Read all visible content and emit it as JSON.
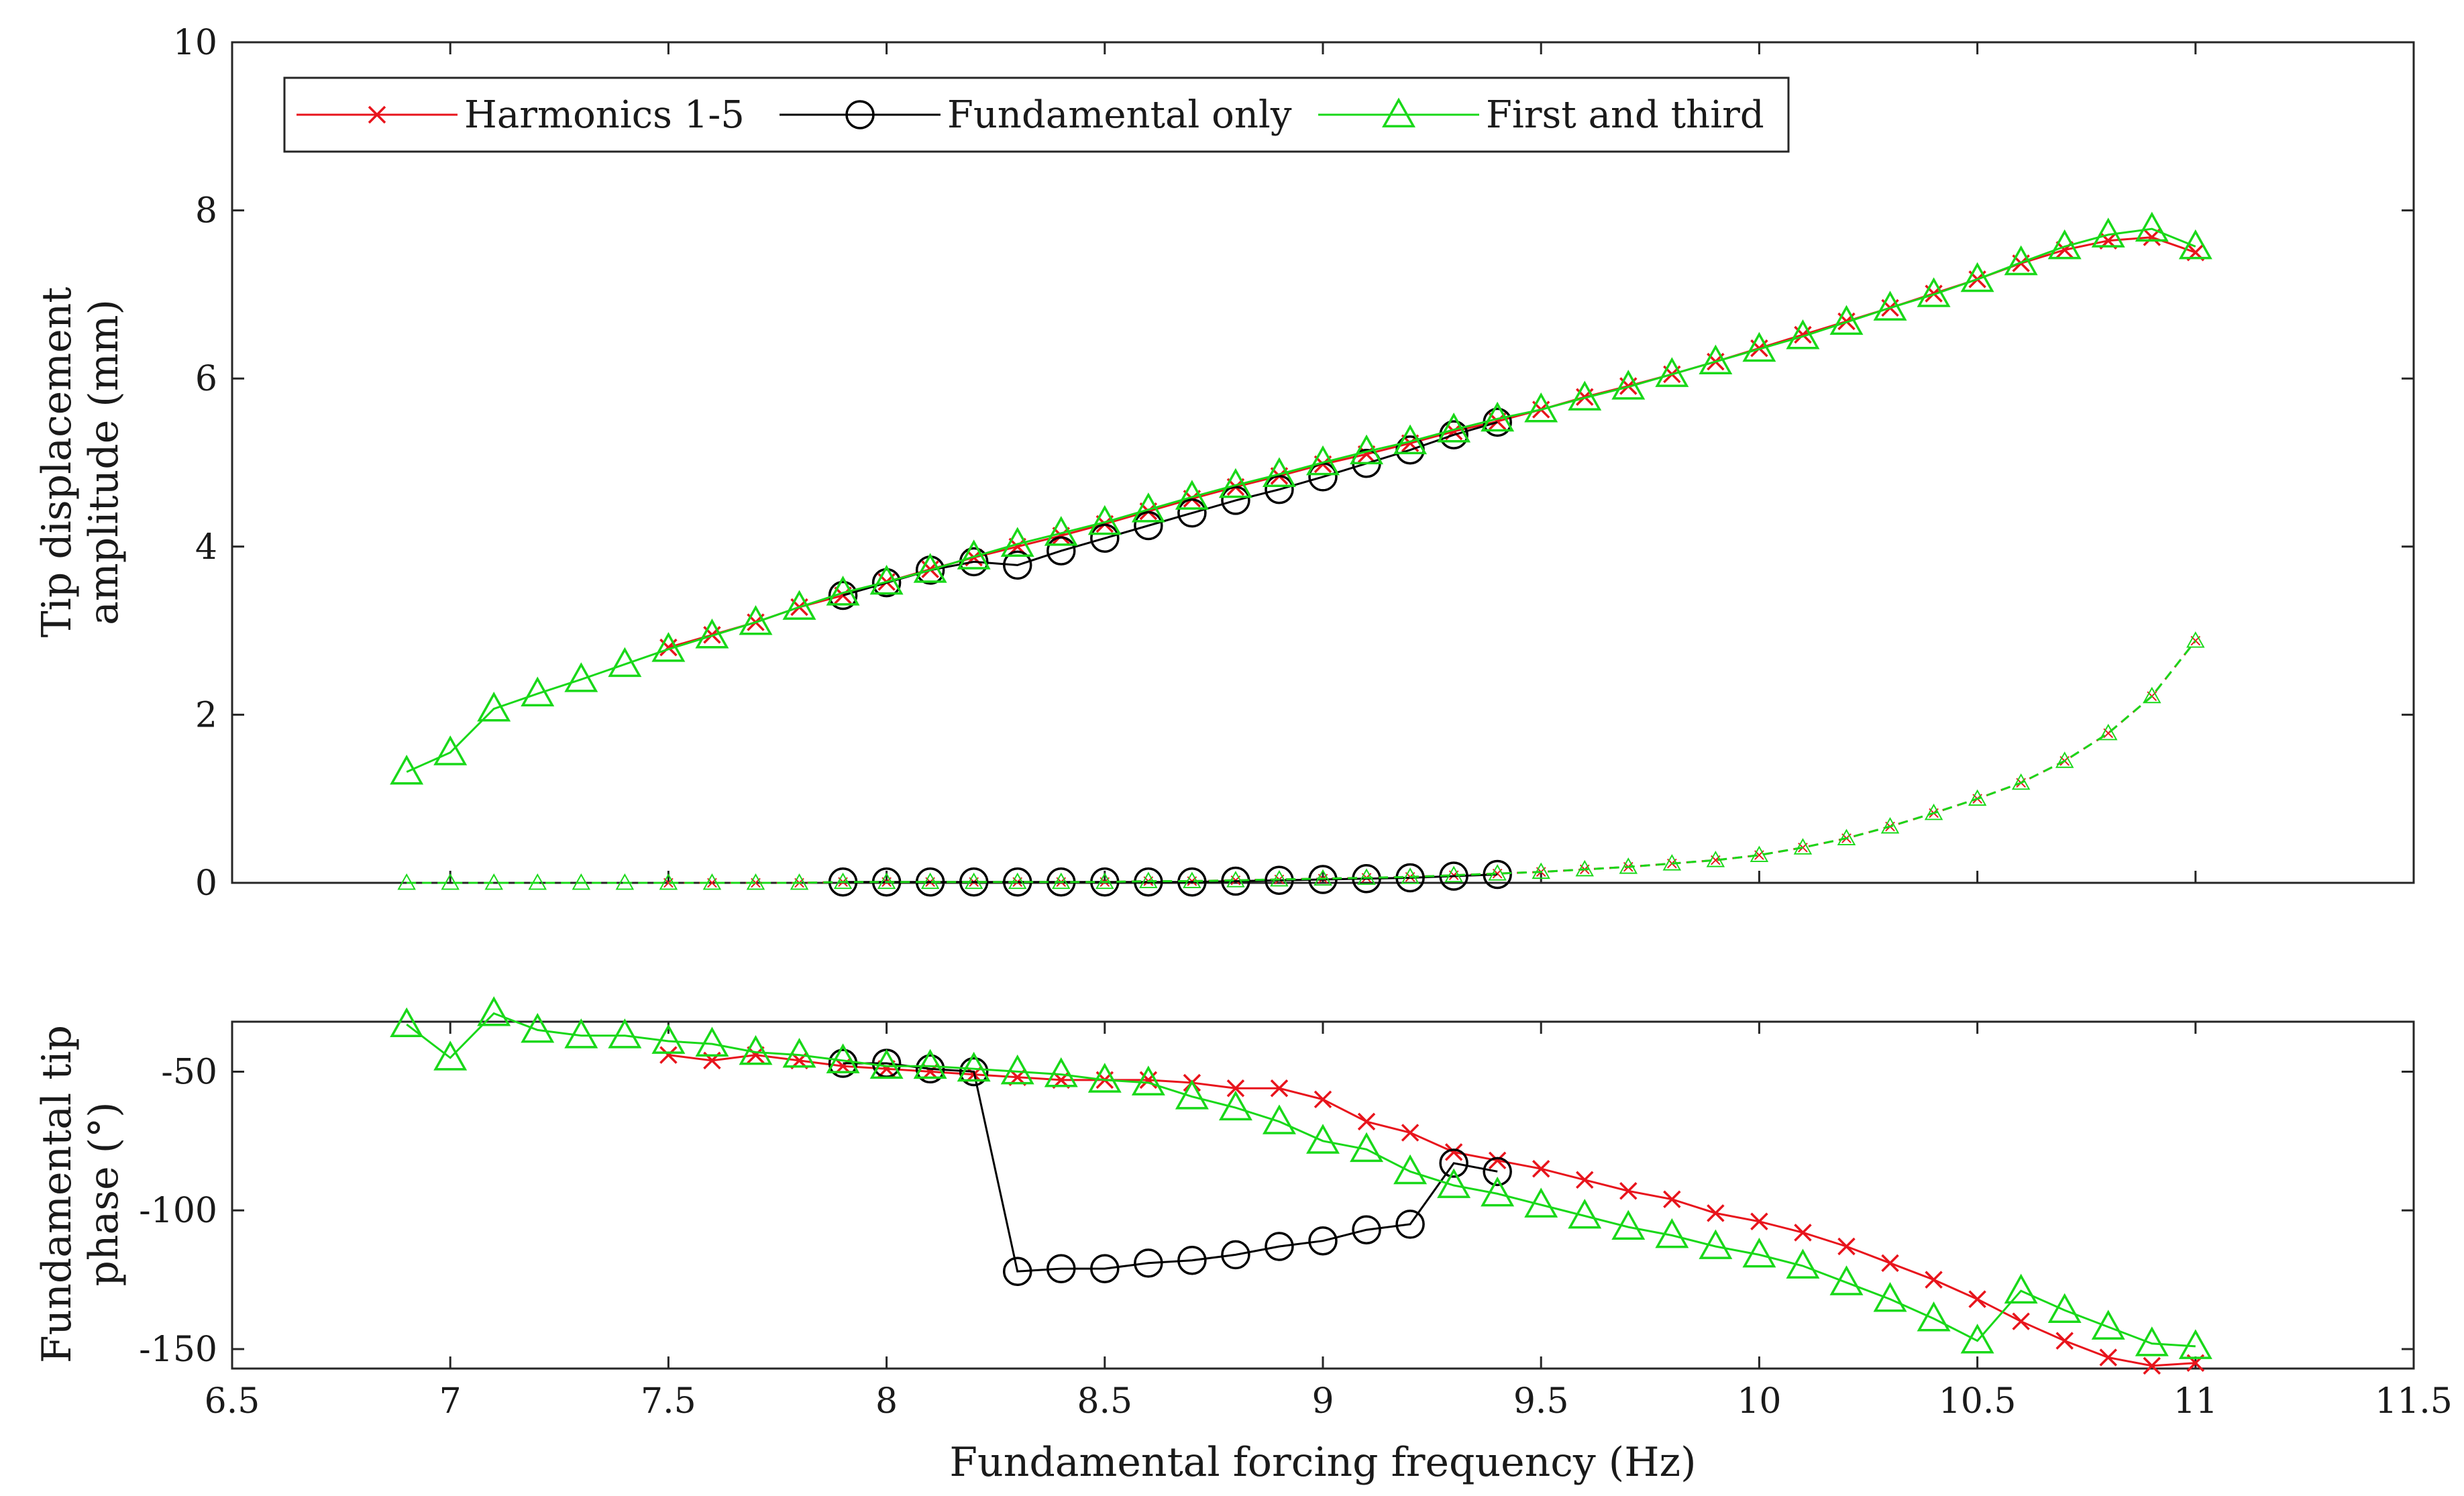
{
  "chart_data": [
    {
      "type": "line",
      "panel": "top",
      "title": "",
      "xlabel": "",
      "ylabel": [
        "Tip displacement",
        "amplitude (mm)"
      ],
      "xlim": [
        6.5,
        11.5
      ],
      "ylim": [
        0,
        10
      ],
      "yticks": [
        0,
        2,
        4,
        6,
        8,
        10
      ],
      "yticklabels": [
        "0",
        "2",
        "4",
        "6",
        "8",
        "10"
      ],
      "legend": {
        "placement": "top-left",
        "entries": [
          {
            "name": "Harmonics 1-5",
            "color": "#e8141c",
            "marker": "x"
          },
          {
            "name": "Fundamental only",
            "color": "#000000",
            "marker": "o"
          },
          {
            "name": "First and third",
            "color": "#19d819",
            "marker": "triangle"
          }
        ]
      },
      "series": [
        {
          "name": "Harmonics 1-5",
          "color": "#e8141c",
          "marker": "x",
          "dash": "solid",
          "x": [
            7.5,
            7.6,
            7.7,
            7.8,
            7.9,
            8.0,
            8.1,
            8.2,
            8.3,
            8.4,
            8.5,
            8.6,
            8.7,
            8.8,
            8.9,
            9.0,
            9.1,
            9.2,
            9.3,
            9.4,
            9.5,
            9.6,
            9.7,
            9.8,
            9.9,
            10.0,
            10.1,
            10.2,
            10.3,
            10.4,
            10.5,
            10.6,
            10.7,
            10.8,
            10.9,
            11.0
          ],
          "y": [
            2.8,
            2.95,
            3.1,
            3.28,
            3.42,
            3.58,
            3.73,
            3.87,
            4.0,
            4.13,
            4.27,
            4.42,
            4.57,
            4.71,
            4.84,
            4.98,
            5.1,
            5.23,
            5.37,
            5.49,
            5.63,
            5.78,
            5.91,
            6.05,
            6.2,
            6.36,
            6.52,
            6.68,
            6.84,
            7.01,
            7.18,
            7.37,
            7.53,
            7.64,
            7.68,
            7.5
          ]
        },
        {
          "name": "Harmonics 1-5 (lower branch)",
          "color": "#e8141c",
          "marker": "x",
          "dash": "dashed",
          "x": [
            7.5,
            7.6,
            7.7,
            7.8,
            7.9,
            8.0,
            8.1,
            8.2,
            8.3,
            8.4,
            8.5,
            8.6,
            8.7,
            8.8,
            8.9,
            9.0,
            9.1,
            9.2,
            9.3,
            9.4,
            9.5,
            9.6,
            9.7,
            9.8,
            9.9,
            10.0,
            10.1,
            10.2,
            10.3,
            10.4,
            10.5,
            10.6,
            10.7,
            10.8,
            10.9,
            11.0
          ],
          "y": [
            0.0,
            0.0,
            0.0,
            0.0,
            0.01,
            0.01,
            0.01,
            0.01,
            0.01,
            0.01,
            0.01,
            0.02,
            0.02,
            0.03,
            0.04,
            0.05,
            0.06,
            0.07,
            0.09,
            0.11,
            0.13,
            0.16,
            0.19,
            0.23,
            0.27,
            0.33,
            0.42,
            0.53,
            0.67,
            0.83,
            1.0,
            1.19,
            1.45,
            1.78,
            2.22,
            2.88
          ]
        },
        {
          "name": "Fundamental only",
          "color": "#000000",
          "marker": "o",
          "dash": "solid",
          "x": [
            7.9,
            8.0,
            8.1,
            8.2,
            8.3,
            8.4,
            8.5,
            8.6,
            8.7,
            8.8,
            8.9,
            9.0,
            9.1,
            9.2,
            9.3,
            9.4
          ],
          "y": [
            3.42,
            3.57,
            3.72,
            3.82,
            3.78,
            3.95,
            4.1,
            4.25,
            4.4,
            4.55,
            4.68,
            4.83,
            4.99,
            5.15,
            5.33,
            5.48
          ]
        },
        {
          "name": "Fundamental only (lower branch)",
          "color": "#000000",
          "marker": "o",
          "dash": "solid",
          "x": [
            7.9,
            8.0,
            8.1,
            8.2,
            8.3,
            8.4,
            8.5,
            8.6,
            8.7,
            8.8,
            8.9,
            9.0,
            9.1,
            9.2,
            9.3,
            9.4
          ],
          "y": [
            0.01,
            0.01,
            0.01,
            0.01,
            0.01,
            0.01,
            0.01,
            0.01,
            0.01,
            0.02,
            0.03,
            0.04,
            0.05,
            0.06,
            0.08,
            0.1
          ]
        },
        {
          "name": "First and third",
          "color": "#19d819",
          "marker": "triangle",
          "dash": "solid",
          "x": [
            6.9,
            7.0,
            7.1,
            7.2,
            7.3,
            7.4,
            7.5,
            7.6,
            7.7,
            7.8,
            7.9,
            8.0,
            8.1,
            8.2,
            8.3,
            8.4,
            8.5,
            8.6,
            8.7,
            8.8,
            8.9,
            9.0,
            9.1,
            9.2,
            9.3,
            9.4,
            9.5,
            9.6,
            9.7,
            9.8,
            9.9,
            10.0,
            10.1,
            10.2,
            10.3,
            10.4,
            10.5,
            10.6,
            10.7,
            10.8,
            10.9,
            11.0
          ],
          "y": [
            1.32,
            1.55,
            2.07,
            2.25,
            2.42,
            2.6,
            2.78,
            2.94,
            3.1,
            3.28,
            3.45,
            3.58,
            3.72,
            3.88,
            4.03,
            4.16,
            4.29,
            4.44,
            4.59,
            4.73,
            4.86,
            5.0,
            5.13,
            5.25,
            5.39,
            5.52,
            5.63,
            5.77,
            5.9,
            6.05,
            6.2,
            6.35,
            6.5,
            6.67,
            6.84,
            7.0,
            7.18,
            7.38,
            7.57,
            7.71,
            7.78,
            7.57
          ]
        },
        {
          "name": "First and third (lower branch)",
          "color": "#19d819",
          "marker": "triangle",
          "dash": "dashed",
          "x": [
            6.9,
            7.0,
            7.1,
            7.2,
            7.3,
            7.4,
            7.5,
            7.6,
            7.7,
            7.8,
            7.9,
            8.0,
            8.1,
            8.2,
            8.3,
            8.4,
            8.5,
            8.6,
            8.7,
            8.8,
            8.9,
            9.0,
            9.1,
            9.2,
            9.3,
            9.4,
            9.5,
            9.6,
            9.7,
            9.8,
            9.9,
            10.0,
            10.1,
            10.2,
            10.3,
            10.4,
            10.5,
            10.6,
            10.7,
            10.8,
            10.9,
            11.0
          ],
          "y": [
            0.0,
            0.0,
            0.0,
            0.0,
            0.0,
            0.0,
            0.0,
            0.0,
            0.0,
            0.0,
            0.01,
            0.01,
            0.01,
            0.01,
            0.01,
            0.01,
            0.01,
            0.02,
            0.02,
            0.03,
            0.04,
            0.05,
            0.06,
            0.07,
            0.09,
            0.11,
            0.13,
            0.16,
            0.19,
            0.23,
            0.27,
            0.33,
            0.42,
            0.53,
            0.67,
            0.83,
            1.0,
            1.19,
            1.45,
            1.78,
            2.22,
            2.88
          ]
        }
      ]
    },
    {
      "type": "line",
      "panel": "bottom",
      "title": "",
      "xlabel": "Fundamental forcing frequency (Hz)",
      "ylabel": [
        "Fundamental tip",
        "phase (°)"
      ],
      "xlim": [
        6.5,
        11.5
      ],
      "ylim": [
        -157,
        -32
      ],
      "xticks": [
        6.5,
        7,
        7.5,
        8,
        8.5,
        9,
        9.5,
        10,
        10.5,
        11,
        11.5
      ],
      "xticklabels": [
        "6.5",
        "7",
        "7.5",
        "8",
        "8.5",
        "9",
        "9.5",
        "10",
        "10.5",
        "11",
        "11.5"
      ],
      "yticks": [
        -50,
        -100,
        -150
      ],
      "yticklabels": [
        "-50",
        "-100",
        "-150"
      ],
      "series": [
        {
          "name": "Harmonics 1-5",
          "color": "#e8141c",
          "marker": "x",
          "dash": "solid",
          "x": [
            7.5,
            7.6,
            7.7,
            7.8,
            7.9,
            8.0,
            8.1,
            8.2,
            8.3,
            8.4,
            8.5,
            8.6,
            8.7,
            8.8,
            8.9,
            9.0,
            9.1,
            9.2,
            9.3,
            9.4,
            9.5,
            9.6,
            9.7,
            9.8,
            9.9,
            10.0,
            10.1,
            10.2,
            10.3,
            10.4,
            10.5,
            10.6,
            10.7,
            10.8,
            10.9,
            11.0
          ],
          "y": [
            -44,
            -46,
            -44,
            -46,
            -48,
            -49,
            -50,
            -51,
            -52,
            -53,
            -53,
            -53,
            -54,
            -56,
            -56,
            -60,
            -68,
            -72,
            -79,
            -82,
            -85,
            -89,
            -93,
            -96,
            -101,
            -104,
            -108,
            -113,
            -119,
            -125,
            -132,
            -140,
            -147,
            -153,
            -156,
            -155
          ]
        },
        {
          "name": "Fundamental only",
          "color": "#000000",
          "marker": "o",
          "dash": "solid",
          "x": [
            7.9,
            8.0,
            8.1,
            8.2,
            8.3,
            8.4,
            8.5,
            8.6,
            8.7,
            8.8,
            8.9,
            9.0,
            9.1,
            9.2,
            9.3,
            9.4
          ],
          "y": [
            -47,
            -47,
            -49,
            -50,
            -122,
            -121,
            -121,
            -119,
            -118,
            -116,
            -113,
            -111,
            -107,
            -105,
            -83,
            -86
          ]
        },
        {
          "name": "First and third",
          "color": "#19d819",
          "marker": "triangle",
          "dash": "solid",
          "x": [
            6.9,
            7.0,
            7.1,
            7.2,
            7.3,
            7.4,
            7.5,
            7.6,
            7.7,
            7.8,
            7.9,
            8.0,
            8.1,
            8.2,
            8.3,
            8.4,
            8.5,
            8.6,
            8.7,
            8.8,
            8.9,
            9.0,
            9.1,
            9.2,
            9.3,
            9.4,
            9.5,
            9.6,
            9.7,
            9.8,
            9.9,
            10.0,
            10.1,
            10.2,
            10.3,
            10.4,
            10.5,
            10.6,
            10.7,
            10.8,
            10.9,
            11.0
          ],
          "y": [
            -33,
            -45,
            -29,
            -35,
            -37,
            -37,
            -39,
            -40,
            -43,
            -44,
            -46,
            -48,
            -48,
            -49,
            -50,
            -51,
            -53,
            -54,
            -59,
            -63,
            -68,
            -75,
            -78,
            -86,
            -91,
            -94,
            -98,
            -102,
            -106,
            -109,
            -113,
            -116,
            -120,
            -126,
            -132,
            -139,
            -147,
            -129,
            -136,
            -142,
            -148,
            -149
          ]
        }
      ]
    }
  ]
}
